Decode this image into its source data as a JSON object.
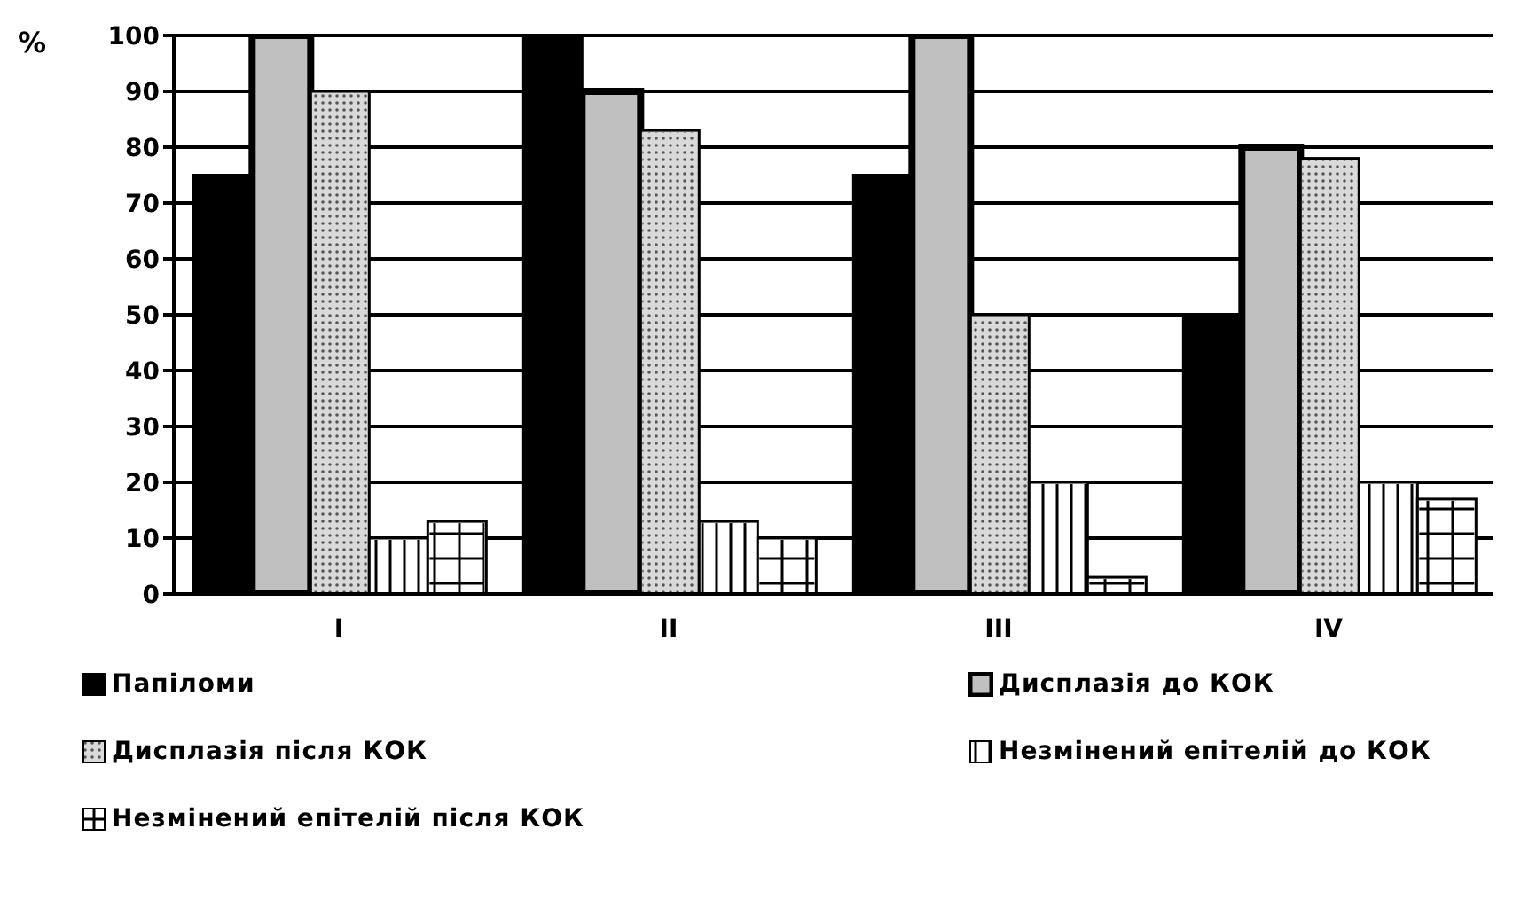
{
  "chart_data": {
    "type": "bar",
    "ylabel": "%",
    "categories": [
      "I",
      "II",
      "III",
      "IV"
    ],
    "series": [
      {
        "name": "Папіломи",
        "color": "#000000",
        "values": [
          75,
          100,
          75,
          50
        ]
      },
      {
        "name": "Дисплазія до КОК",
        "color": "#c0c0c0",
        "values": [
          100,
          90,
          100,
          80
        ]
      },
      {
        "name": "Дисплазія після КОК",
        "color": "#d9d9d9",
        "values": [
          90,
          83,
          50,
          78
        ]
      },
      {
        "name": "Незмінений епітелій до КОК",
        "color": "#ffffff",
        "values": [
          10,
          13,
          20,
          20
        ]
      },
      {
        "name": "Незмінений епітелій після КОК",
        "color": "#ffffff",
        "values": [
          13,
          10,
          3,
          17
        ]
      }
    ],
    "ylim": [
      0,
      100
    ],
    "yticks": [
      0,
      10,
      20,
      30,
      40,
      50,
      60,
      70,
      80,
      90,
      100
    ],
    "grid": "y",
    "legend": "bottom"
  }
}
